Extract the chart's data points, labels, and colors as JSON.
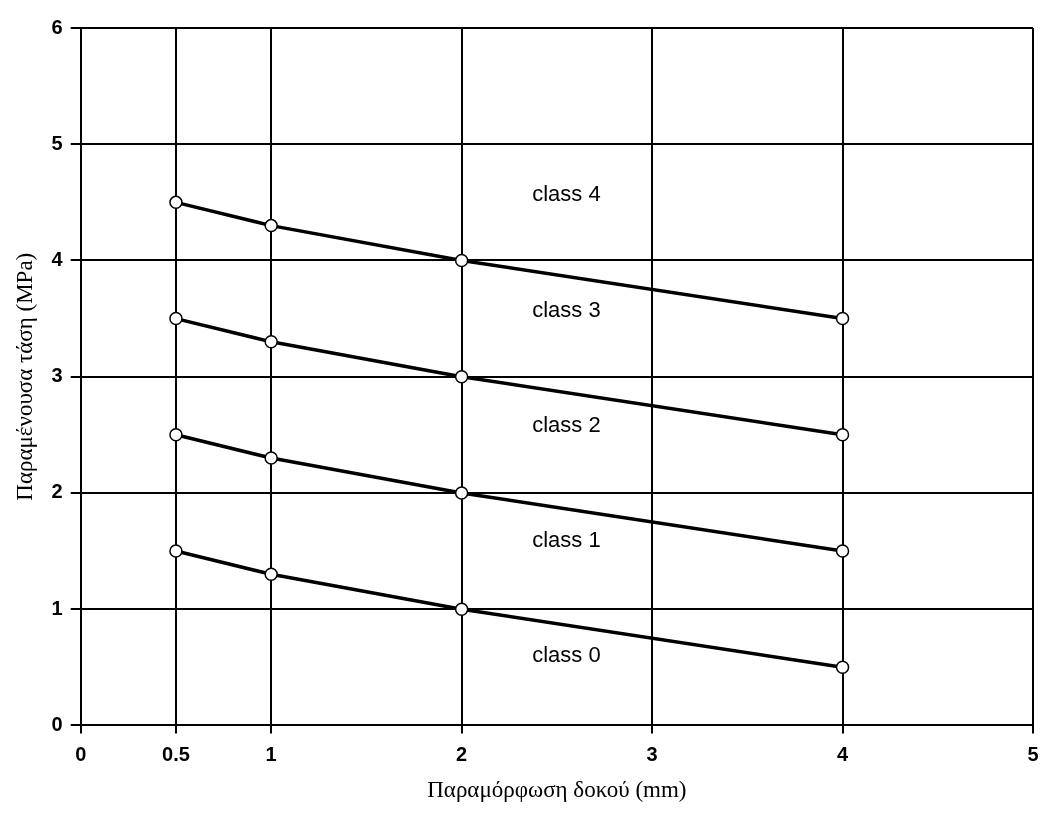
{
  "chart_data": {
    "type": "line",
    "xlabel": "Παραμόρφωση δοκού (mm)",
    "ylabel": "Παραμένουσα τάση (MPa)",
    "x": [
      0.5,
      1,
      2,
      4
    ],
    "series": [
      {
        "color": "#000000",
        "values": [
          1.5,
          1.3,
          1,
          0.5
        ]
      },
      {
        "color": "#000000",
        "values": [
          2.5,
          2.3,
          2,
          1.5
        ]
      },
      {
        "color": "#000000",
        "values": [
          3.5,
          3.3,
          3,
          2.5
        ]
      },
      {
        "color": "#000000",
        "values": [
          4.5,
          4.3,
          4,
          3.5
        ]
      }
    ],
    "xlim": [
      0,
      5
    ],
    "xticks": [
      0,
      0.5,
      1,
      2,
      3,
      4,
      5
    ],
    "ylim": [
      0,
      6
    ],
    "yticks": [
      0,
      1,
      2,
      3,
      4,
      5,
      6
    ],
    "grid": true,
    "legend": false,
    "marker": "circle",
    "line_style": "solid",
    "annotations": [
      "class 4",
      "class 3",
      "class 2",
      "class 1",
      "class 0"
    ]
  }
}
